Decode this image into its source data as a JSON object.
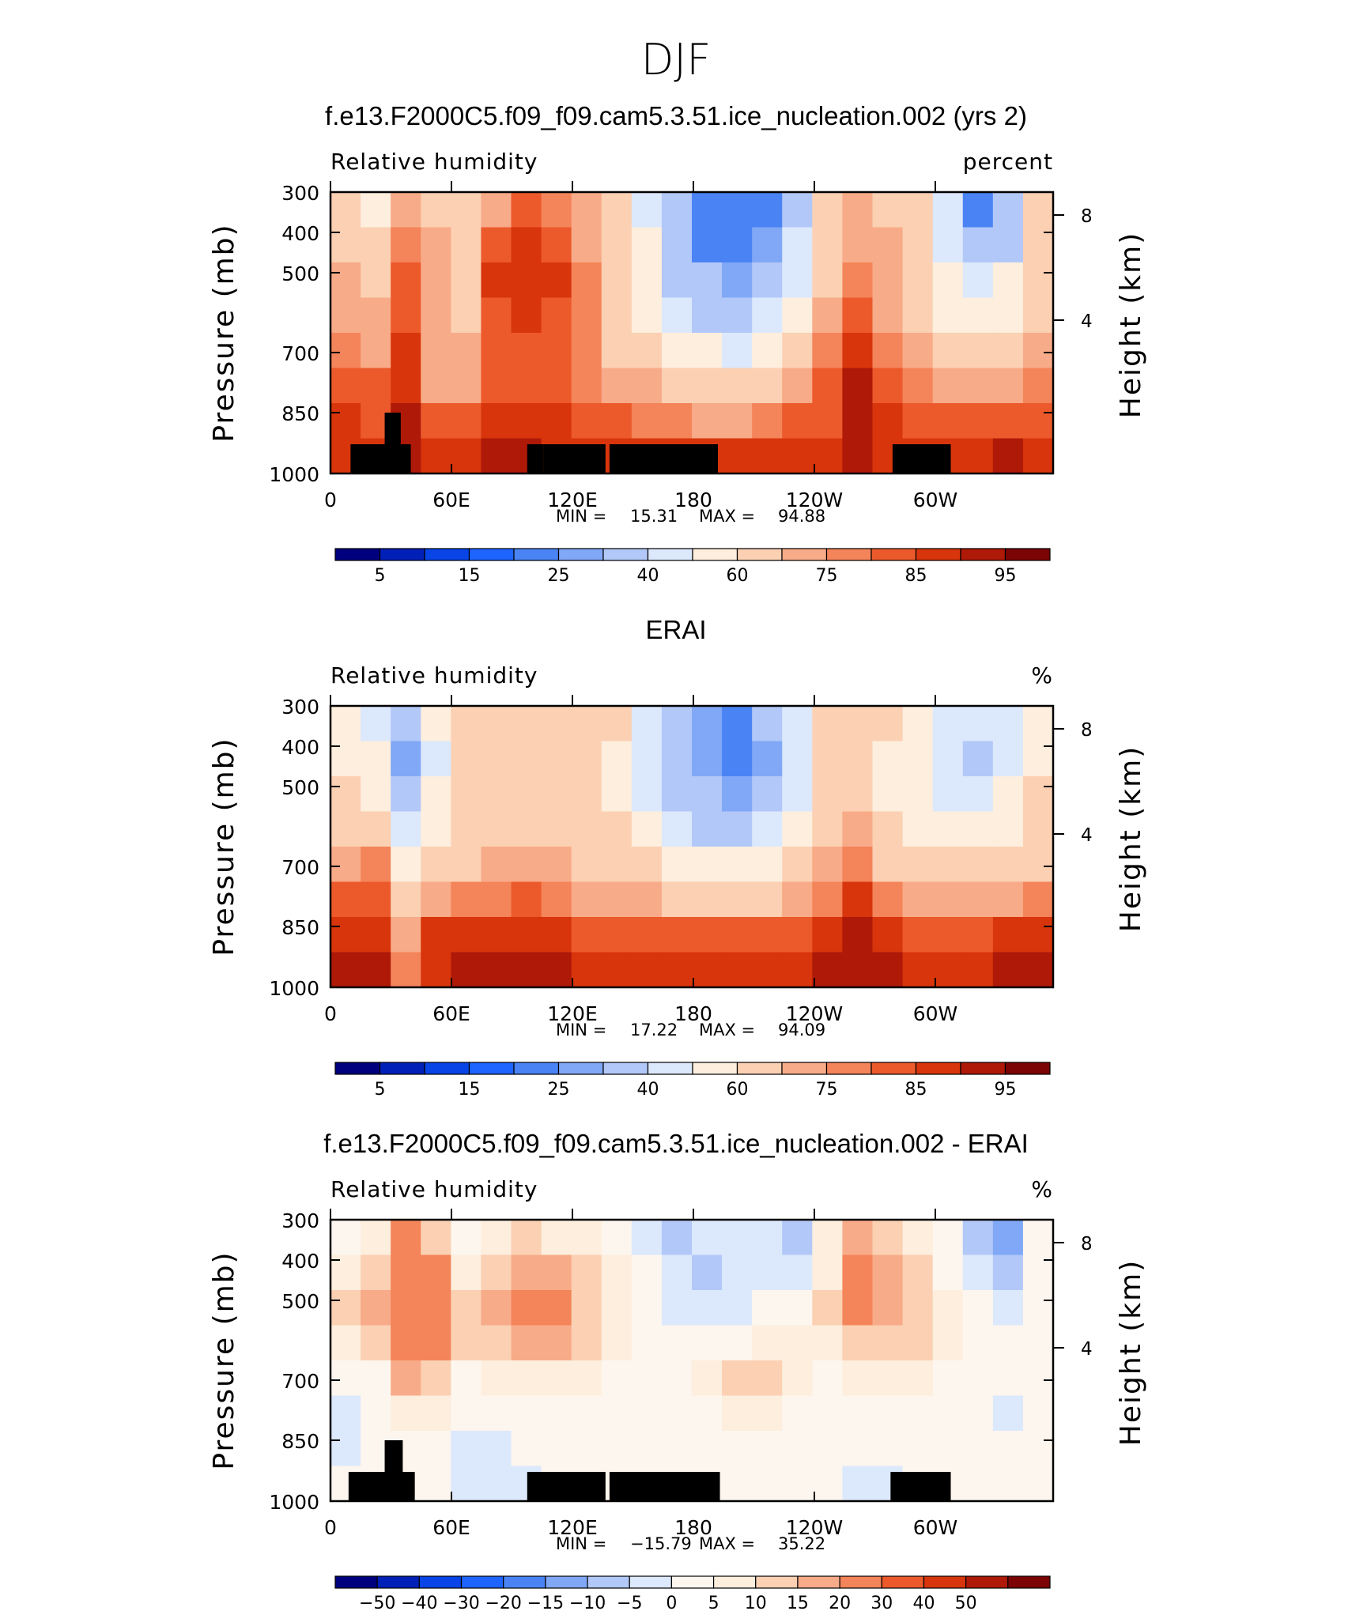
{
  "figure": {
    "season": "DJF",
    "colors": {
      "rh_palette": [
        "#00007f",
        "#0020b8",
        "#0844e6",
        "#1e64ff",
        "#4a84f4",
        "#80a8f6",
        "#b2c8f8",
        "#dce8fc",
        "#fdeedd",
        "#fbd0b3",
        "#f8ab88",
        "#f4845a",
        "#ec5a2c",
        "#d8350c",
        "#ae1908",
        "#7c0404"
      ],
      "diff_palette": [
        "#00007f",
        "#0020b8",
        "#0844e6",
        "#1e64ff",
        "#4a84f4",
        "#80a8f6",
        "#b2c8f8",
        "#dce8fc",
        "#fdf6ee",
        "#fdeedd",
        "#fbd0b3",
        "#f8ab88",
        "#f4845a",
        "#ec5a2c",
        "#d8350c",
        "#ae1908",
        "#7c0404"
      ]
    }
  },
  "chart_data": [
    {
      "type": "heatmap",
      "title": "f.e13.F2000C5.f09_f09.cam5.3.51.ice_nucleation.002 (yrs 2)",
      "left_label": "Relative humidity",
      "right_label": "percent",
      "ylabel": "Pressure (mb)",
      "ylabel_right": "Height (km)",
      "y_ticks": [
        "300",
        "400",
        "500",
        "700",
        "850",
        "1000"
      ],
      "y_right_ticks": [
        "8",
        "4"
      ],
      "x_ticks": [
        "0",
        "60E",
        "120E",
        "180",
        "120W",
        "60W"
      ],
      "stats": {
        "min_label": "MIN =",
        "min": "15.31",
        "max_label": "MAX =",
        "max": "94.88"
      },
      "colorbar_labels": [
        "5",
        "15",
        "25",
        "40",
        "60",
        "75",
        "85",
        "95"
      ],
      "colorbar_levels": [
        0,
        5,
        10,
        15,
        20,
        25,
        30,
        40,
        50,
        60,
        70,
        75,
        80,
        85,
        90,
        95,
        100
      ],
      "field": [
        [
          62,
          55,
          72,
          68,
          60,
          74,
          80,
          76,
          70,
          60,
          45,
          30,
          22,
          20,
          24,
          35,
          60,
          72,
          68,
          60,
          40,
          24,
          30,
          62
        ],
        [
          66,
          62,
          78,
          70,
          62,
          82,
          86,
          84,
          74,
          62,
          50,
          32,
          24,
          22,
          26,
          40,
          64,
          74,
          70,
          62,
          44,
          30,
          38,
          64
        ],
        [
          70,
          68,
          80,
          72,
          66,
          85,
          88,
          86,
          76,
          64,
          54,
          38,
          30,
          28,
          32,
          46,
          68,
          78,
          72,
          64,
          50,
          42,
          50,
          66
        ],
        [
          72,
          70,
          84,
          74,
          68,
          82,
          86,
          84,
          76,
          66,
          58,
          46,
          38,
          36,
          42,
          54,
          72,
          82,
          74,
          66,
          58,
          52,
          58,
          68
        ],
        [
          76,
          74,
          86,
          72,
          70,
          80,
          84,
          82,
          76,
          68,
          62,
          56,
          50,
          48,
          54,
          62,
          76,
          86,
          76,
          70,
          64,
          62,
          64,
          70
        ],
        [
          82,
          80,
          88,
          74,
          74,
          82,
          84,
          82,
          78,
          72,
          70,
          66,
          62,
          62,
          66,
          70,
          80,
          90,
          80,
          76,
          72,
          70,
          72,
          76
        ],
        [
          86,
          84,
          90,
          80,
          82,
          86,
          88,
          86,
          84,
          80,
          78,
          76,
          74,
          74,
          76,
          80,
          84,
          92,
          86,
          84,
          82,
          82,
          84,
          84
        ],
        [
          88,
          88,
          90,
          86,
          88,
          90,
          90,
          88,
          86,
          86,
          86,
          86,
          86,
          86,
          88,
          88,
          88,
          92,
          88,
          88,
          88,
          88,
          90,
          88
        ]
      ],
      "masks": [
        {
          "lon": [
            10,
            40
          ],
          "p_top": 900
        },
        {
          "lon": [
            27,
            35
          ],
          "p_top": 850
        },
        {
          "lon": [
            98,
            106
          ],
          "p_top": 900
        },
        {
          "lon": [
            106,
            137
          ],
          "p_top": 900
        },
        {
          "lon": [
            139,
            193
          ],
          "p_top": 900
        },
        {
          "lon": [
            280,
            309
          ],
          "p_top": 900
        }
      ]
    },
    {
      "type": "heatmap",
      "title": "ERAI",
      "left_label": "Relative humidity",
      "right_label": "%",
      "ylabel": "Pressure (mb)",
      "ylabel_right": "Height (km)",
      "y_ticks": [
        "300",
        "400",
        "500",
        "700",
        "850",
        "1000"
      ],
      "y_right_ticks": [
        "8",
        "4"
      ],
      "x_ticks": [
        "0",
        "60E",
        "120E",
        "180",
        "120W",
        "60W"
      ],
      "stats": {
        "min_label": "MIN =",
        "min": "17.22",
        "max_label": "MAX =",
        "max": "94.09"
      },
      "colorbar_labels": [
        "5",
        "15",
        "25",
        "40",
        "60",
        "75",
        "85",
        "95"
      ],
      "colorbar_levels": [
        0,
        5,
        10,
        15,
        20,
        25,
        30,
        40,
        50,
        60,
        70,
        75,
        80,
        85,
        90,
        95,
        100
      ],
      "field": [
        [
          55,
          48,
          38,
          52,
          62,
          66,
          66,
          66,
          64,
          60,
          44,
          36,
          26,
          22,
          30,
          46,
          62,
          66,
          60,
          52,
          46,
          40,
          48,
          58
        ],
        [
          58,
          52,
          26,
          48,
          62,
          64,
          64,
          64,
          62,
          58,
          42,
          34,
          28,
          20,
          26,
          42,
          60,
          64,
          56,
          50,
          42,
          34,
          44,
          58
        ],
        [
          62,
          58,
          34,
          50,
          64,
          64,
          64,
          64,
          62,
          58,
          46,
          36,
          32,
          28,
          32,
          46,
          62,
          66,
          58,
          52,
          48,
          44,
          52,
          60
        ],
        [
          66,
          68,
          44,
          54,
          64,
          66,
          66,
          66,
          64,
          60,
          54,
          44,
          38,
          36,
          42,
          56,
          66,
          72,
          62,
          58,
          56,
          54,
          58,
          62
        ],
        [
          72,
          76,
          50,
          62,
          68,
          70,
          72,
          70,
          68,
          64,
          60,
          54,
          50,
          50,
          56,
          64,
          70,
          78,
          68,
          64,
          62,
          62,
          64,
          68
        ],
        [
          80,
          84,
          60,
          74,
          76,
          78,
          80,
          78,
          74,
          72,
          70,
          68,
          66,
          66,
          68,
          72,
          76,
          86,
          78,
          74,
          72,
          72,
          74,
          76
        ],
        [
          86,
          88,
          70,
          86,
          86,
          88,
          88,
          86,
          84,
          82,
          82,
          82,
          80,
          80,
          82,
          84,
          86,
          90,
          86,
          84,
          84,
          84,
          86,
          86
        ],
        [
          90,
          90,
          76,
          88,
          90,
          90,
          90,
          90,
          88,
          88,
          88,
          88,
          88,
          88,
          88,
          88,
          90,
          92,
          90,
          88,
          88,
          88,
          90,
          90
        ]
      ],
      "masks": []
    },
    {
      "type": "heatmap",
      "title": "f.e13.F2000C5.f09_f09.cam5.3.51.ice_nucleation.002 - ERAI",
      "left_label": "Relative humidity",
      "right_label": "%",
      "ylabel": "Pressure (mb)",
      "ylabel_right": "Height (km)",
      "y_ticks": [
        "300",
        "400",
        "500",
        "700",
        "850",
        "1000"
      ],
      "y_right_ticks": [
        "8",
        "4"
      ],
      "x_ticks": [
        "0",
        "60E",
        "120E",
        "180",
        "120W",
        "60W"
      ],
      "stats": {
        "min_label": "MIN =",
        "min": "−15.79",
        "max_label": "MAX =",
        "max": "35.22"
      },
      "colorbar_labels": [
        "−50",
        "−40",
        "−30",
        "−20",
        "−15",
        "−10",
        "−5",
        "0",
        "5",
        "10",
        "15",
        "20",
        "30",
        "40",
        "50"
      ],
      "colorbar_levels": [
        -60,
        -50,
        -40,
        -30,
        -20,
        -15,
        -10,
        -5,
        0,
        5,
        10,
        15,
        20,
        30,
        40,
        50,
        60
      ],
      "field": [
        [
          2,
          6,
          20,
          14,
          4,
          6,
          10,
          8,
          6,
          2,
          -2,
          -6,
          -4,
          -2,
          -4,
          -6,
          6,
          18,
          12,
          6,
          0,
          -6,
          -12,
          4
        ],
        [
          8,
          14,
          26,
          20,
          8,
          14,
          18,
          16,
          12,
          6,
          0,
          -4,
          -6,
          -4,
          -2,
          -2,
          8,
          20,
          16,
          12,
          4,
          -4,
          -6,
          4
        ],
        [
          12,
          16,
          28,
          22,
          12,
          18,
          20,
          20,
          14,
          8,
          2,
          -2,
          -4,
          -2,
          0,
          2,
          10,
          20,
          18,
          14,
          6,
          0,
          -2,
          4
        ],
        [
          6,
          12,
          26,
          20,
          10,
          14,
          16,
          16,
          12,
          6,
          2,
          0,
          2,
          4,
          6,
          6,
          8,
          14,
          14,
          10,
          6,
          2,
          0,
          4
        ],
        [
          2,
          4,
          16,
          12,
          4,
          6,
          8,
          8,
          6,
          4,
          2,
          2,
          6,
          10,
          12,
          8,
          4,
          6,
          8,
          6,
          4,
          2,
          0,
          2
        ],
        [
          -4,
          2,
          8,
          6,
          0,
          2,
          2,
          2,
          2,
          2,
          2,
          2,
          4,
          6,
          6,
          4,
          2,
          0,
          2,
          2,
          0,
          0,
          -2,
          0
        ],
        [
          -2,
          0,
          2,
          2,
          -2,
          -2,
          0,
          2,
          2,
          2,
          2,
          2,
          2,
          2,
          2,
          2,
          2,
          0,
          0,
          2,
          2,
          0,
          0,
          0
        ],
        [
          0,
          0,
          0,
          0,
          -2,
          -4,
          -2,
          0,
          2,
          2,
          2,
          2,
          2,
          2,
          2,
          2,
          0,
          -2,
          -2,
          0,
          2,
          2,
          2,
          2
        ]
      ],
      "masks": [
        {
          "lon": [
            9,
            42
          ],
          "p_top": 900
        },
        {
          "lon": [
            27,
            36
          ],
          "p_top": 850
        },
        {
          "lon": [
            98,
            137
          ],
          "p_top": 900
        },
        {
          "lon": [
            139,
            194
          ],
          "p_top": 900
        },
        {
          "lon": [
            279,
            309
          ],
          "p_top": 900
        }
      ]
    }
  ]
}
